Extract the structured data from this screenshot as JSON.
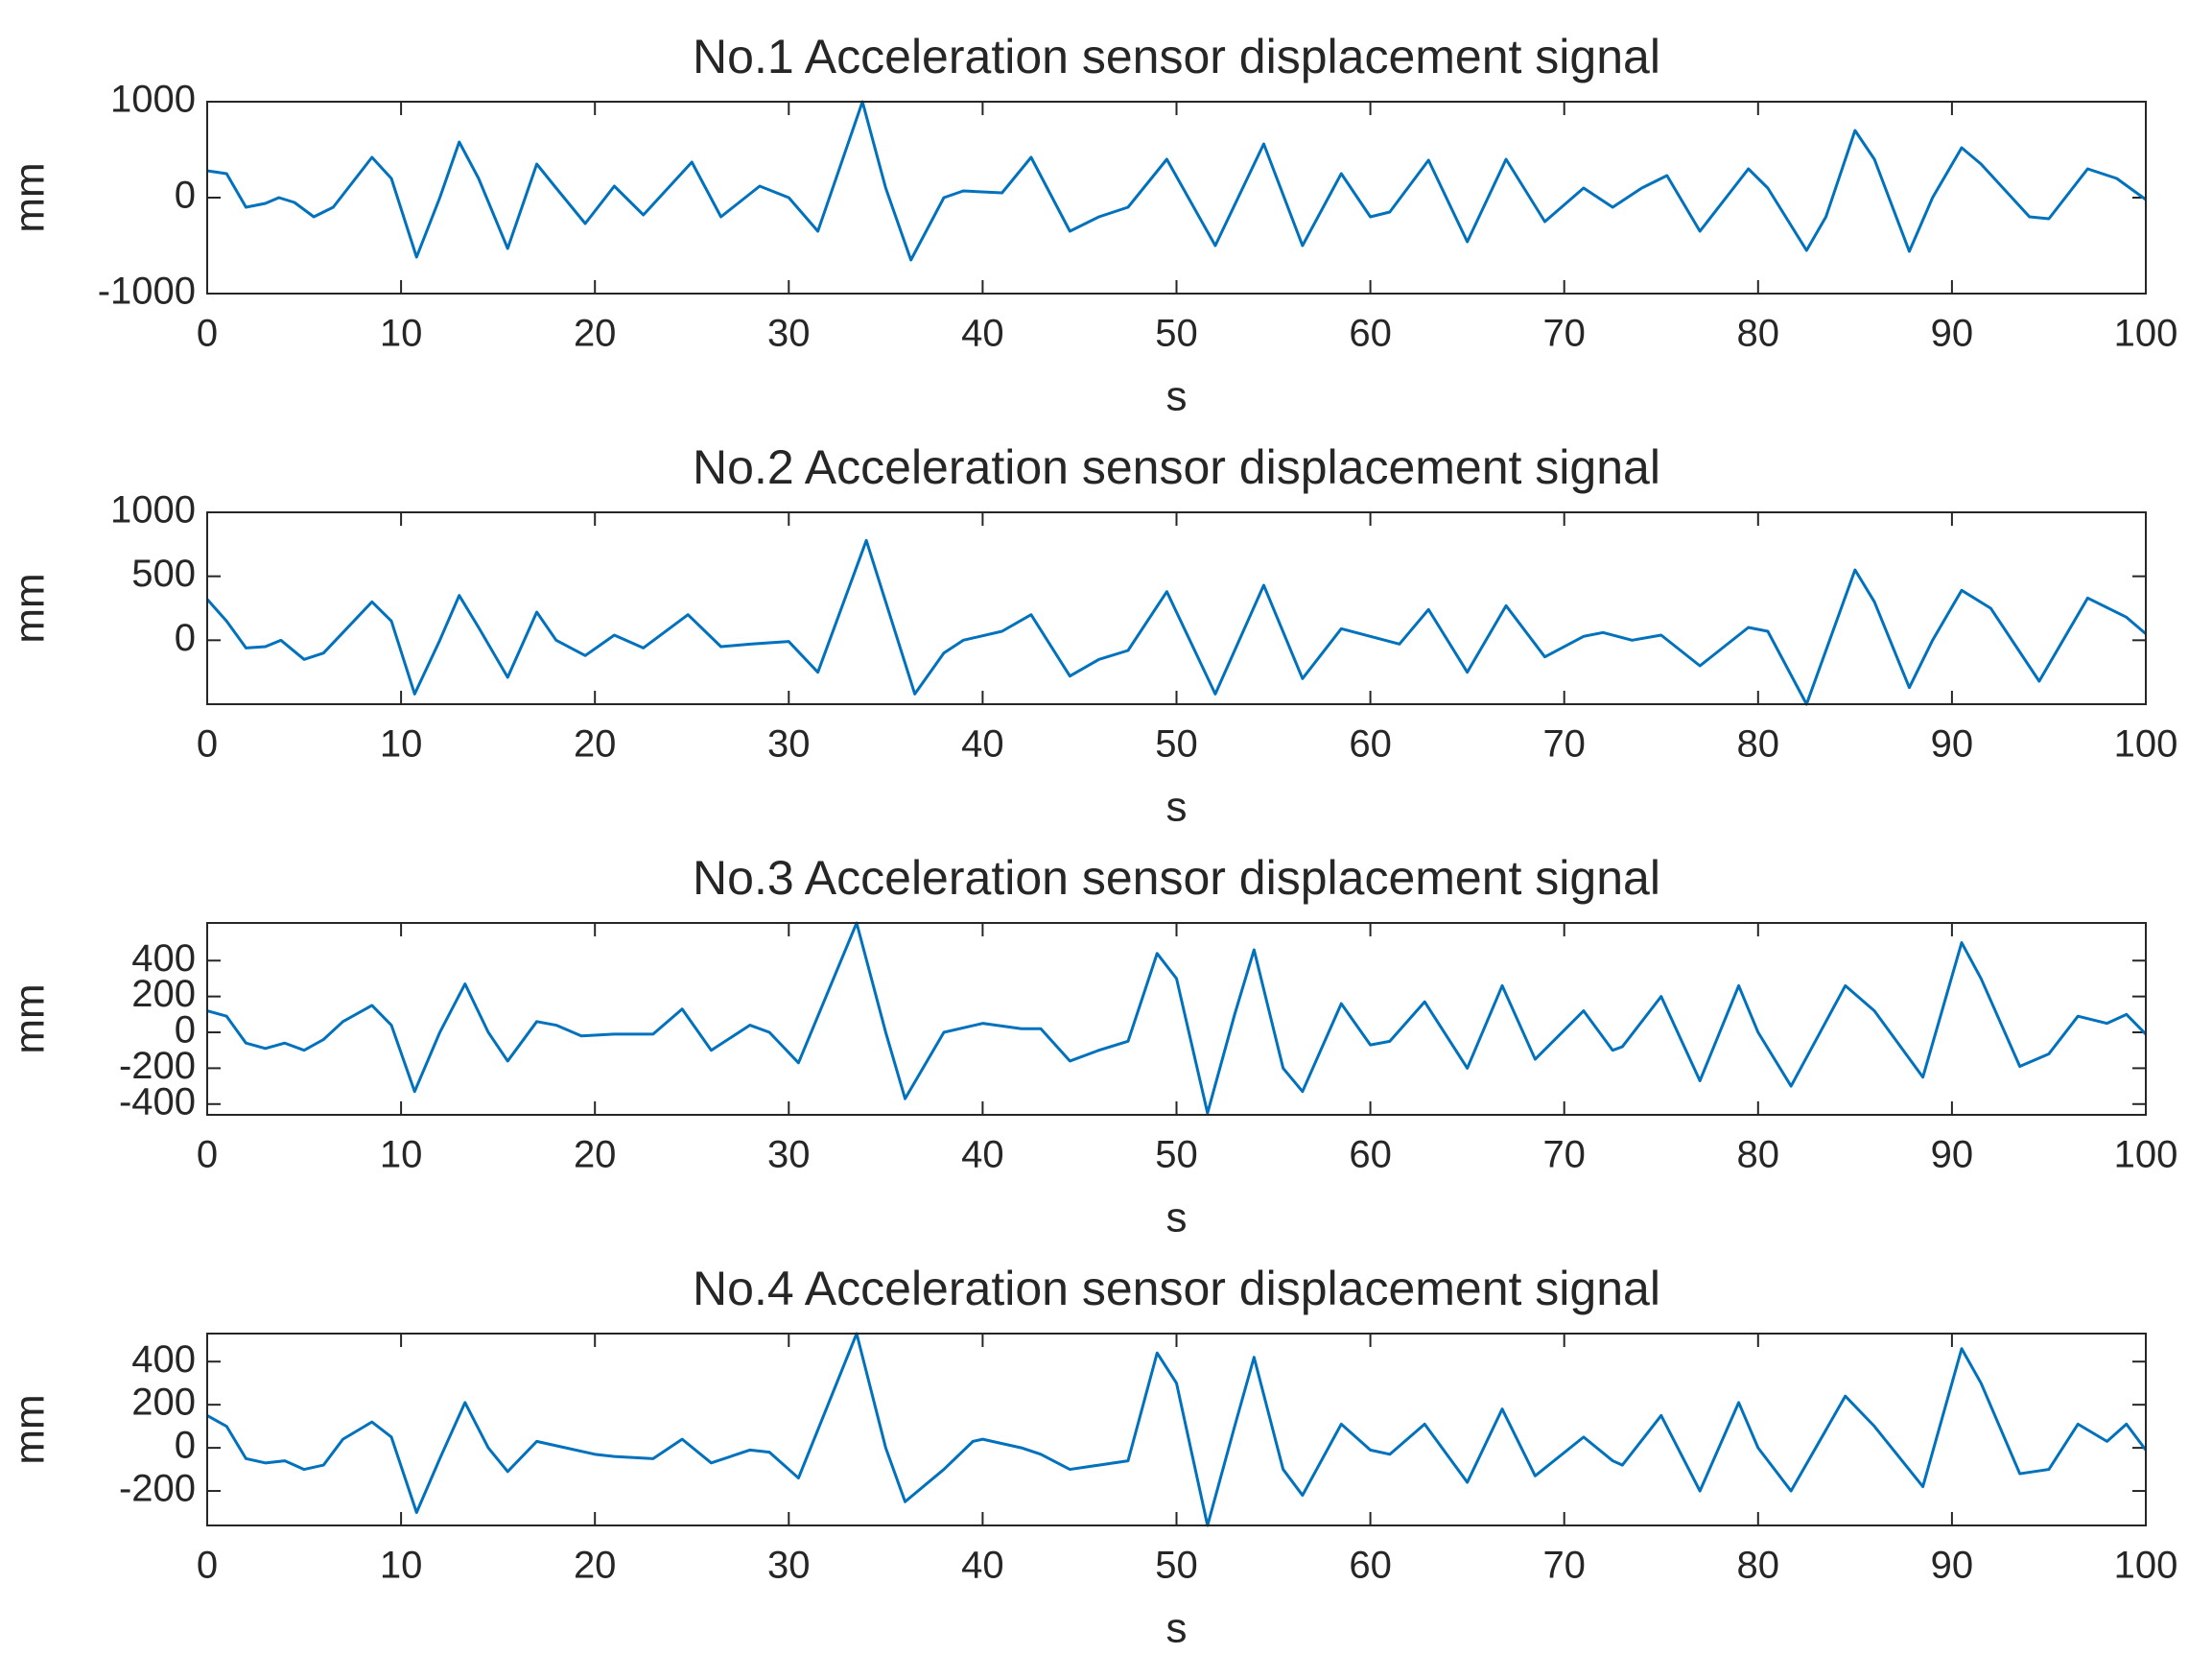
{
  "chart_data": [
    {
      "type": "line",
      "title": "No.1 Acceleration sensor displacement signal",
      "xlabel": "s",
      "ylabel": "mm",
      "x": [
        0,
        1,
        2,
        3,
        3.7,
        4.5,
        5.5,
        6.5,
        8.5,
        9.5,
        10.8,
        12,
        13,
        14,
        15.5,
        17,
        18,
        19.5,
        21,
        22.5,
        25,
        26.5,
        28.5,
        30,
        31.5,
        33.8,
        35,
        36.3,
        38,
        39,
        41,
        42.5,
        44.5,
        46,
        47.5,
        49.5,
        52,
        54.5,
        56.5,
        58.5,
        60,
        61,
        63,
        65,
        67,
        69,
        71,
        72.5,
        74,
        75.3,
        77,
        79.5,
        80.5,
        82.5,
        83.5,
        85,
        86,
        87.8,
        89,
        90.5,
        91.5,
        94,
        95,
        97,
        98.5,
        100
      ],
      "series": [
        {
          "name": "No.1",
          "color": "#0072bd",
          "values": [
            280,
            250,
            -100,
            -60,
            0,
            -50,
            -200,
            -100,
            420,
            200,
            -620,
            0,
            580,
            200,
            -530,
            350,
            100,
            -270,
            120,
            -180,
            370,
            -200,
            120,
            0,
            -350,
            1000,
            100,
            -650,
            0,
            70,
            50,
            420,
            -350,
            -200,
            -100,
            400,
            -500,
            560,
            -500,
            250,
            -200,
            -150,
            390,
            -460,
            400,
            -250,
            100,
            -100,
            100,
            230,
            -350,
            300,
            100,
            -550,
            -200,
            700,
            400,
            -560,
            0,
            520,
            350,
            -200,
            -220,
            300,
            200,
            -20
          ]
        }
      ],
      "xlim": [
        0,
        100
      ],
      "xticks": [
        0,
        10,
        20,
        30,
        40,
        50,
        60,
        70,
        80,
        90,
        100
      ],
      "ylim": [
        -1000,
        1000
      ],
      "yticks": [
        -1000,
        0,
        1000
      ]
    },
    {
      "type": "line",
      "title": "No.2 Acceleration sensor displacement signal",
      "xlabel": "s",
      "ylabel": "mm",
      "x": [
        0,
        1,
        2,
        3,
        3.8,
        5,
        6,
        8.5,
        9.5,
        10.7,
        12,
        13,
        14,
        15.5,
        17,
        18,
        19.5,
        21,
        22.5,
        24.8,
        26.5,
        28,
        30,
        31.5,
        34,
        35,
        36.5,
        38,
        39,
        41,
        42.5,
        44.5,
        46,
        47.5,
        49.5,
        52,
        54.5,
        56.5,
        58.5,
        60,
        61.5,
        63,
        65,
        67,
        69,
        71,
        72,
        73.5,
        75,
        77,
        79.5,
        80.5,
        82.5,
        85,
        86,
        87.8,
        89,
        90.5,
        92,
        94.5,
        97,
        99,
        100
      ],
      "series": [
        {
          "name": "No.2",
          "color": "#0072bd",
          "values": [
            320,
            150,
            -60,
            -50,
            0,
            -150,
            -100,
            300,
            150,
            -420,
            0,
            350,
            100,
            -290,
            220,
            0,
            -120,
            40,
            -60,
            200,
            -50,
            -30,
            -10,
            -250,
            780,
            300,
            -420,
            -100,
            0,
            70,
            200,
            -280,
            -150,
            -80,
            380,
            -420,
            430,
            -300,
            90,
            30,
            -30,
            240,
            -250,
            270,
            -130,
            30,
            60,
            0,
            40,
            -200,
            100,
            70,
            -500,
            550,
            300,
            -370,
            0,
            390,
            250,
            -320,
            330,
            180,
            50
          ]
        }
      ],
      "xlim": [
        0,
        100
      ],
      "xticks": [
        0,
        10,
        20,
        30,
        40,
        50,
        60,
        70,
        80,
        90,
        100
      ],
      "ylim": [
        -500,
        1000
      ],
      "yticks": [
        0,
        500,
        1000
      ]
    },
    {
      "type": "line",
      "title": "No.3 Acceleration sensor displacement signal",
      "xlabel": "s",
      "ylabel": "mm",
      "x": [
        0,
        1,
        2,
        3,
        4,
        5,
        6,
        7,
        8.5,
        9.5,
        10.7,
        12,
        13.3,
        14.5,
        15.5,
        17,
        18,
        19.3,
        21,
        23,
        24.5,
        26,
        28,
        29,
        30.5,
        33.5,
        35,
        36,
        38,
        40,
        42,
        43,
        44.5,
        46,
        47.5,
        49,
        50,
        51.6,
        53,
        54,
        55.5,
        56.5,
        58.5,
        60,
        61,
        62.8,
        65,
        66.8,
        68.5,
        71,
        72.5,
        73,
        75,
        77,
        79,
        80,
        81.7,
        84.5,
        86,
        88.5,
        90.5,
        91.5,
        93.5,
        95,
        96.5,
        98,
        99,
        100
      ],
      "series": [
        {
          "name": "No.3",
          "color": "#0072bd",
          "values": [
            120,
            90,
            -60,
            -90,
            -60,
            -100,
            -40,
            60,
            150,
            40,
            -330,
            0,
            270,
            0,
            -160,
            60,
            40,
            -20,
            -10,
            -10,
            130,
            -100,
            40,
            0,
            -170,
            610,
            0,
            -370,
            0,
            50,
            20,
            20,
            -160,
            -100,
            -50,
            440,
            300,
            -450,
            100,
            460,
            -200,
            -330,
            160,
            -70,
            -50,
            170,
            -200,
            260,
            -150,
            120,
            -100,
            -80,
            200,
            -270,
            260,
            0,
            -300,
            260,
            120,
            -250,
            500,
            300,
            -190,
            -120,
            90,
            50,
            100,
            -10
          ]
        }
      ],
      "xlim": [
        0,
        100
      ],
      "xticks": [
        0,
        10,
        20,
        30,
        40,
        50,
        60,
        70,
        80,
        90,
        100
      ],
      "ylim": [
        -460,
        610
      ],
      "yticks": [
        -400,
        -200,
        0,
        200,
        400
      ]
    },
    {
      "type": "line",
      "title": "No.4 Acceleration sensor displacement signal",
      "xlabel": "s",
      "ylabel": "mm",
      "x": [
        0,
        1,
        2,
        3,
        4,
        5,
        6,
        7,
        8.5,
        9.5,
        10.8,
        12,
        13.3,
        14.5,
        15.5,
        17,
        18,
        20,
        21,
        23,
        24.5,
        26,
        28,
        29,
        30.5,
        33.5,
        35,
        36,
        38,
        39.5,
        40,
        42,
        43,
        44.5,
        46,
        47.5,
        49,
        50,
        51.6,
        53,
        54,
        55.5,
        56.5,
        58.5,
        60,
        61,
        62.8,
        65,
        66.8,
        68.5,
        71,
        72.5,
        73,
        75,
        77,
        79,
        80,
        81.7,
        84.5,
        86,
        88.5,
        90.5,
        91.5,
        93.5,
        95,
        96.5,
        98,
        99,
        100
      ],
      "series": [
        {
          "name": "No.4",
          "color": "#0072bd",
          "values": [
            150,
            100,
            -50,
            -70,
            -60,
            -100,
            -80,
            40,
            120,
            50,
            -300,
            -50,
            210,
            0,
            -110,
            30,
            10,
            -30,
            -40,
            -50,
            40,
            -70,
            -10,
            -20,
            -140,
            530,
            0,
            -250,
            -100,
            30,
            40,
            0,
            -30,
            -100,
            -80,
            -60,
            440,
            300,
            -360,
            100,
            420,
            -100,
            -220,
            110,
            -10,
            -30,
            110,
            -160,
            180,
            -130,
            50,
            -60,
            -80,
            150,
            -200,
            210,
            0,
            -200,
            240,
            100,
            -180,
            460,
            300,
            -120,
            -100,
            110,
            30,
            110,
            -10
          ]
        }
      ],
      "xlim": [
        0,
        100
      ],
      "xticks": [
        0,
        10,
        20,
        30,
        40,
        50,
        60,
        70,
        80,
        90,
        100
      ],
      "ylim": [
        -360,
        530
      ],
      "yticks": [
        -200,
        0,
        200,
        400
      ]
    }
  ]
}
